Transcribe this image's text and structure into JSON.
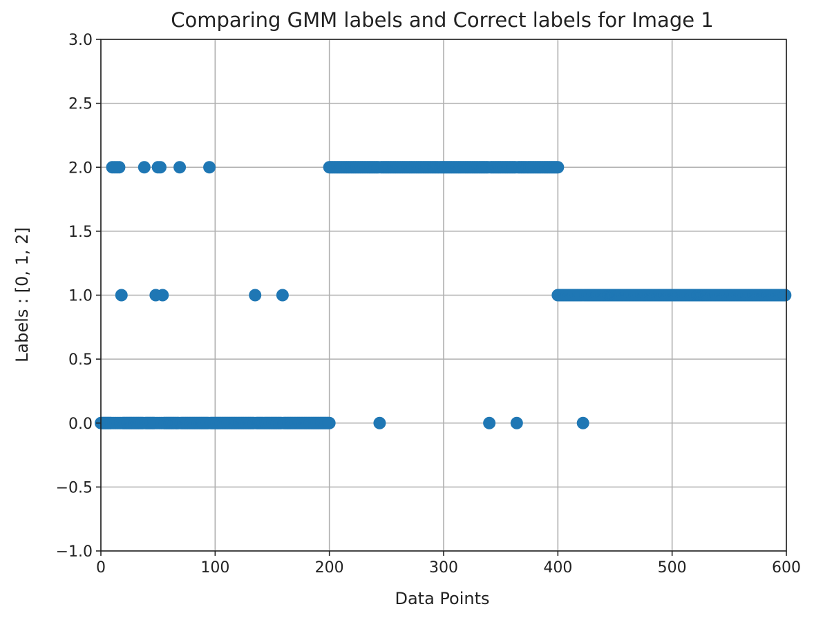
{
  "chart_data": {
    "type": "scatter",
    "title": "Comparing GMM labels and Correct labels for Image 1",
    "xlabel": "Data Points",
    "ylabel": "Labels : [0, 1, 2]",
    "xlim": [
      0,
      600
    ],
    "ylim": [
      -1.0,
      3.0
    ],
    "x_ticks": [
      "0",
      "100",
      "200",
      "300",
      "400",
      "500",
      "600"
    ],
    "y_ticks": [
      "−1.0",
      "−0.5",
      "0.0",
      "0.5",
      "1.0",
      "1.5",
      "2.0",
      "2.5",
      "3.0"
    ],
    "x_tick_values": [
      0,
      100,
      200,
      300,
      400,
      500,
      600
    ],
    "y_tick_values": [
      -1.0,
      -0.5,
      0.0,
      0.5,
      1.0,
      1.5,
      2.0,
      2.5,
      3.0
    ],
    "grid": true,
    "color": "#1f77b4",
    "series": [
      {
        "runs": [
          {
            "from": 0,
            "to": 200,
            "y": 0
          },
          {
            "from": 200,
            "to": 400,
            "y": 2
          },
          {
            "from": 400,
            "to": 600,
            "y": 1
          }
        ],
        "exceptions": [
          {
            "x": 10,
            "y": 2
          },
          {
            "x": 12,
            "y": 2
          },
          {
            "x": 14,
            "y": 2
          },
          {
            "x": 16,
            "y": 2
          },
          {
            "x": 18,
            "y": 1
          },
          {
            "x": 38,
            "y": 2
          },
          {
            "x": 48,
            "y": 1
          },
          {
            "x": 50,
            "y": 2
          },
          {
            "x": 52,
            "y": 2
          },
          {
            "x": 54,
            "y": 1
          },
          {
            "x": 69,
            "y": 2
          },
          {
            "x": 95,
            "y": 2
          },
          {
            "x": 135,
            "y": 1
          },
          {
            "x": 159,
            "y": 1
          },
          {
            "x": 244,
            "y": 0
          },
          {
            "x": 340,
            "y": 0
          },
          {
            "x": 364,
            "y": 0
          },
          {
            "x": 422,
            "y": 0
          }
        ]
      }
    ]
  }
}
